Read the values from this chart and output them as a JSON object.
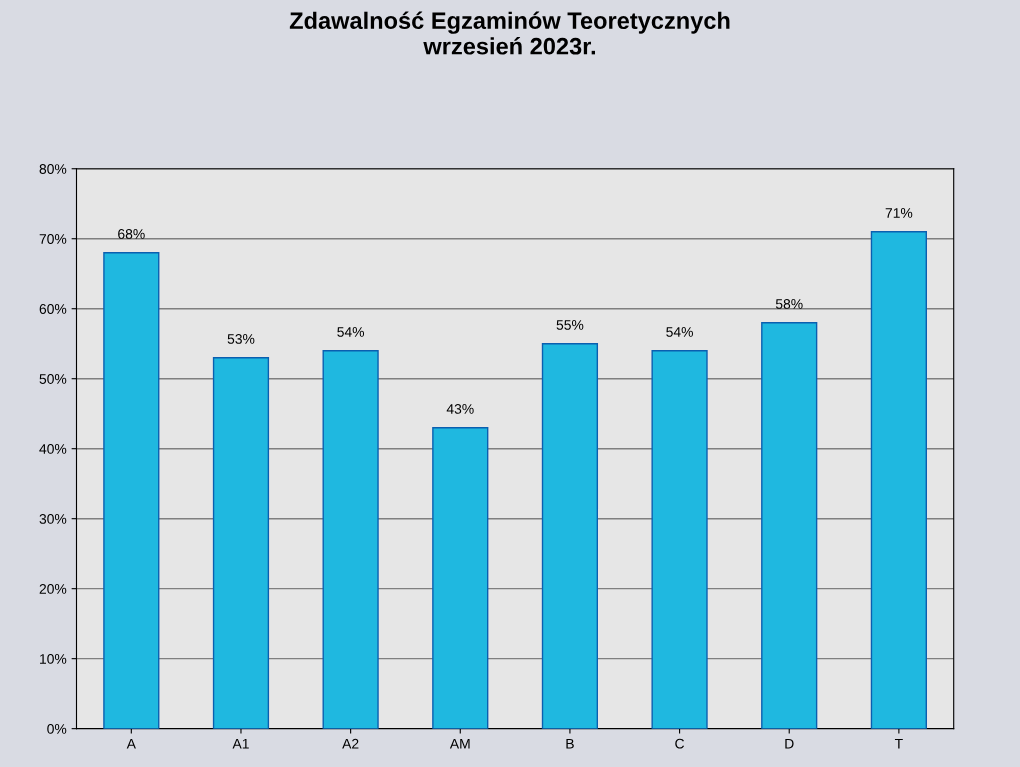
{
  "chart_data": {
    "type": "bar",
    "title": "Zdawalność Egzaminów Teoretycznych\nwrzesień 2023r.",
    "categories": [
      "A",
      "A1",
      "A2",
      "AM",
      "B",
      "C",
      "D",
      "T"
    ],
    "values": [
      68,
      53,
      54,
      43,
      55,
      54,
      58,
      71
    ],
    "value_labels": [
      "68%",
      "53%",
      "54%",
      "43%",
      "55%",
      "54%",
      "58%",
      "71%"
    ],
    "color": "#1fb8e0",
    "ylim": [
      0,
      80
    ],
    "yticks": [
      {
        "value": 0,
        "label": "0%"
      },
      {
        "value": 10,
        "label": "10%"
      },
      {
        "value": 20,
        "label": "20%"
      },
      {
        "value": 30,
        "label": "30%"
      },
      {
        "value": 40,
        "label": "40%"
      },
      {
        "value": 50,
        "label": "50%"
      },
      {
        "value": 60,
        "label": "60%"
      },
      {
        "value": 70,
        "label": "70%"
      },
      {
        "value": 80,
        "label": "80%"
      }
    ],
    "grid": "y"
  }
}
